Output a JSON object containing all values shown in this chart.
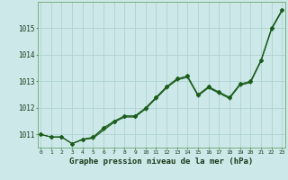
{
  "xlabel": "Graphe pression niveau de la mer (hPa)",
  "background_color": "#cce8e8",
  "grid_color": "#aacece",
  "line_color": "#1a5c1a",
  "x_values": [
    0,
    1,
    2,
    3,
    4,
    5,
    6,
    7,
    8,
    9,
    10,
    11,
    12,
    13,
    14,
    15,
    16,
    17,
    18,
    19,
    20,
    21,
    22,
    23
  ],
  "series1": [
    1011.0,
    1010.9,
    1010.9,
    1010.65,
    1010.8,
    1010.85,
    1011.15,
    1011.45,
    1011.65,
    1011.65,
    1011.95,
    1012.35,
    1012.75,
    1013.05,
    1013.15,
    1012.45,
    1012.75,
    1012.55,
    1012.35,
    1012.85,
    1012.95,
    1013.75,
    1014.95,
    1015.65
  ],
  "series2": [
    1011.0,
    1010.9,
    1010.9,
    1010.65,
    1010.8,
    1010.9,
    1011.25,
    1011.5,
    1011.7,
    1011.7,
    1012.0,
    1012.4,
    1012.8,
    1013.1,
    1013.2,
    1012.5,
    1012.8,
    1012.6,
    1012.4,
    1012.9,
    1013.0,
    1013.8,
    1015.0,
    1015.7
  ],
  "series3": [
    1011.0,
    1010.9,
    1010.9,
    1010.65,
    1010.82,
    1010.88,
    1011.2,
    1011.48,
    1011.68,
    1011.68,
    1011.97,
    1012.38,
    1012.78,
    1013.08,
    1013.18,
    1012.48,
    1012.78,
    1012.58,
    1012.38,
    1012.88,
    1012.98,
    1013.78,
    1014.98,
    1015.68
  ],
  "ylim_min": 1010.5,
  "ylim_max": 1016.0,
  "yticks": [
    1011,
    1012,
    1013,
    1014,
    1015
  ],
  "xtick_fontsize": 4.5,
  "ytick_fontsize": 5.5,
  "xlabel_fontsize": 6.5
}
